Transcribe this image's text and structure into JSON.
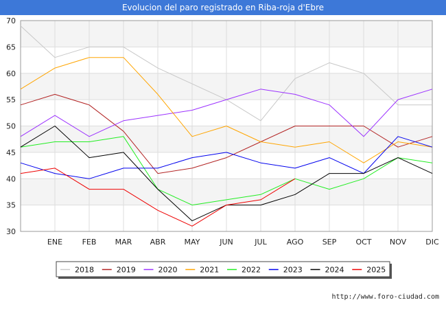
{
  "chart_data": {
    "type": "line",
    "title": "Evolucion del paro registrado en Riba-roja d'Ebre",
    "xlabel": "",
    "ylabel": "",
    "x": [
      "DIC",
      "ENE",
      "FEB",
      "MAR",
      "ABR",
      "MAY",
      "JUN",
      "JUL",
      "AGO",
      "SEP",
      "OCT",
      "NOV",
      "DIC"
    ],
    "x_tick_labels": [
      "",
      "ENE",
      "FEB",
      "MAR",
      "ABR",
      "MAY",
      "JUN",
      "JUL",
      "AGO",
      "SEP",
      "OCT",
      "NOV",
      "DIC"
    ],
    "ylim": [
      30,
      70
    ],
    "yticks": [
      30,
      35,
      40,
      45,
      50,
      55,
      60,
      65,
      70
    ],
    "grid": true,
    "legend_position": "bottom",
    "series": [
      {
        "name": "2018",
        "color": "#c8c8c8",
        "values": [
          69,
          63,
          65,
          65,
          61,
          58,
          55,
          51,
          59,
          62,
          60,
          54,
          54
        ]
      },
      {
        "name": "2019",
        "color": "#b22222",
        "values": [
          54,
          56,
          54,
          49,
          41,
          42,
          44,
          47,
          50,
          50,
          50,
          46,
          48
        ]
      },
      {
        "name": "2020",
        "color": "#9b30ff",
        "values": [
          48,
          52,
          48,
          51,
          52,
          53,
          55,
          57,
          56,
          54,
          48,
          55,
          57
        ]
      },
      {
        "name": "2021",
        "color": "#ffa500",
        "values": [
          57,
          61,
          63,
          63,
          56,
          48,
          50,
          47,
          46,
          47,
          43,
          47,
          46
        ]
      },
      {
        "name": "2022",
        "color": "#22ee22",
        "values": [
          46,
          47,
          47,
          48,
          38,
          35,
          36,
          37,
          40,
          38,
          40,
          44,
          43
        ]
      },
      {
        "name": "2023",
        "color": "#0000ee",
        "values": [
          43,
          41,
          40,
          42,
          42,
          44,
          45,
          43,
          42,
          44,
          41,
          48,
          46
        ]
      },
      {
        "name": "2024",
        "color": "#000000",
        "values": [
          46,
          50,
          44,
          45,
          38,
          32,
          35,
          35,
          37,
          41,
          41,
          44,
          41
        ]
      },
      {
        "name": "2025",
        "color": "#ee0000",
        "values": [
          41,
          42,
          38,
          38,
          34,
          31,
          35,
          36,
          40,
          null,
          null,
          null,
          null
        ]
      }
    ]
  },
  "footer": {
    "url": "http://www.foro-ciudad.com"
  }
}
